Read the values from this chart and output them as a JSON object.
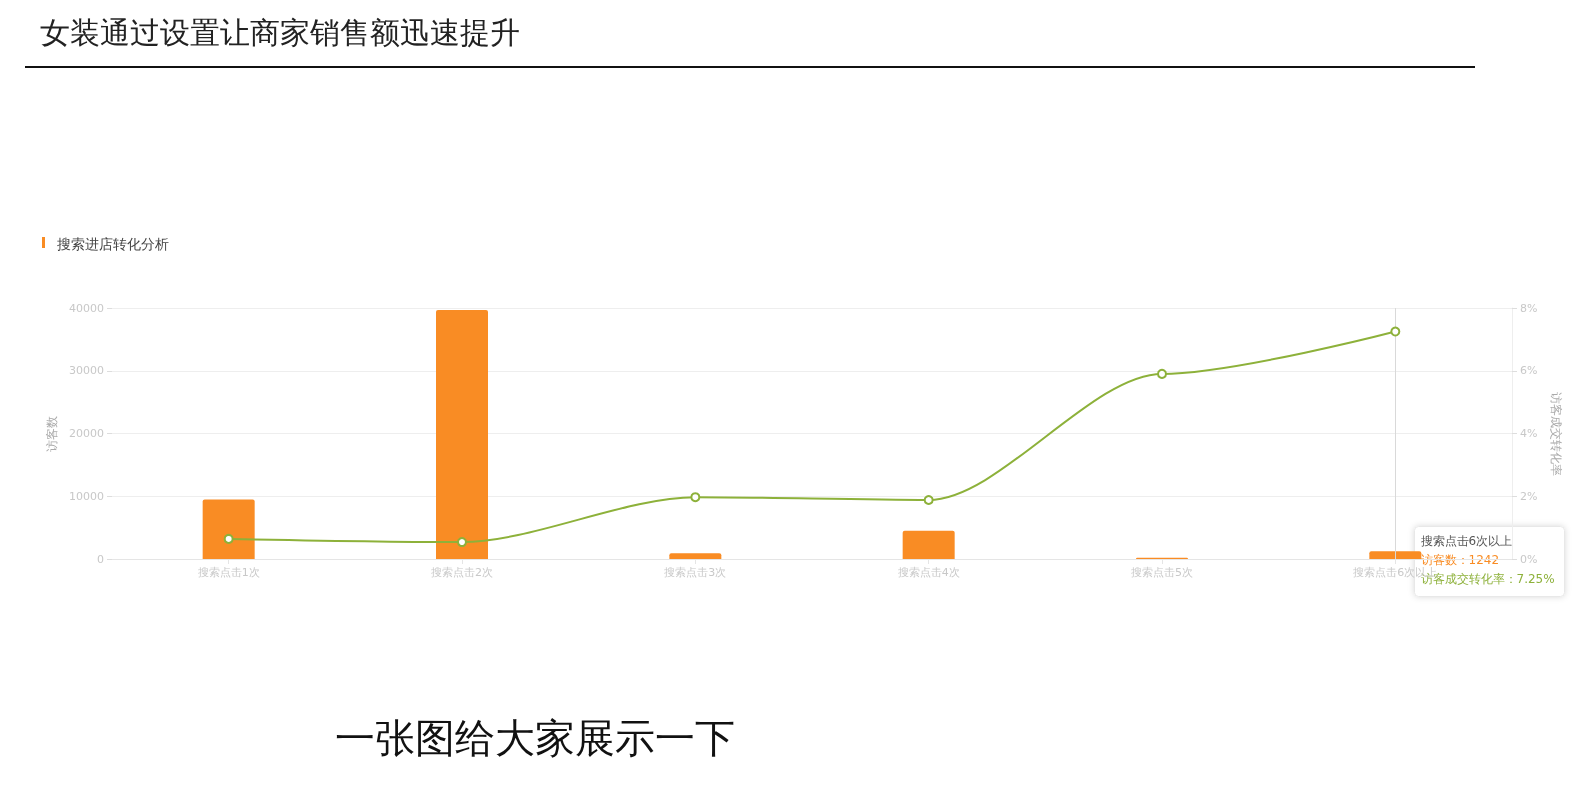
{
  "chart_data": {
    "type": "bar",
    "title": "女装通过设置让商家销售额迅速提升",
    "subtitle": "搜索进店转化分析",
    "ylabel": "访客数",
    "y2label": "访客成交转化率",
    "categories": [
      "搜索点击1次",
      "搜索点击2次",
      "搜索点击3次",
      "搜索点击4次",
      "搜索点击5次",
      "搜索点击6次以上"
    ],
    "series": [
      {
        "color": "#f98c24",
        "values": [
          9500,
          39700,
          900,
          4500,
          200,
          1242
        ]
      },
      {
        "type": "line",
        "axis": "y2",
        "color": "#8db13a",
        "values": [
          0.64,
          0.54,
          1.97,
          1.88,
          5.9,
          7.25
        ]
      }
    ],
    "ylim": [
      0,
      40000
    ],
    "yticks": [
      0,
      10000,
      20000,
      30000,
      40000
    ],
    "y2lim": [
      0,
      8
    ],
    "y2ticks": [
      {
        "value": 0,
        "label": "0%"
      },
      {
        "value": 2,
        "label": "2%"
      },
      {
        "value": 4,
        "label": "4%"
      },
      {
        "value": 6,
        "label": "6%"
      },
      {
        "value": 8,
        "label": "8%"
      }
    ],
    "ref_lines": [
      {
        "axis": "x",
        "value": "搜索点击6次以上",
        "label": null,
        "color": "#d9d9d9"
      }
    ],
    "grid": "y",
    "marker": "circle",
    "line_style": "solid",
    "annotations": [
      "一张图给大家展示一下",
      "搜索点击6次以上",
      "访客数：1242",
      "访客成交转化率：7.25%"
    ]
  }
}
